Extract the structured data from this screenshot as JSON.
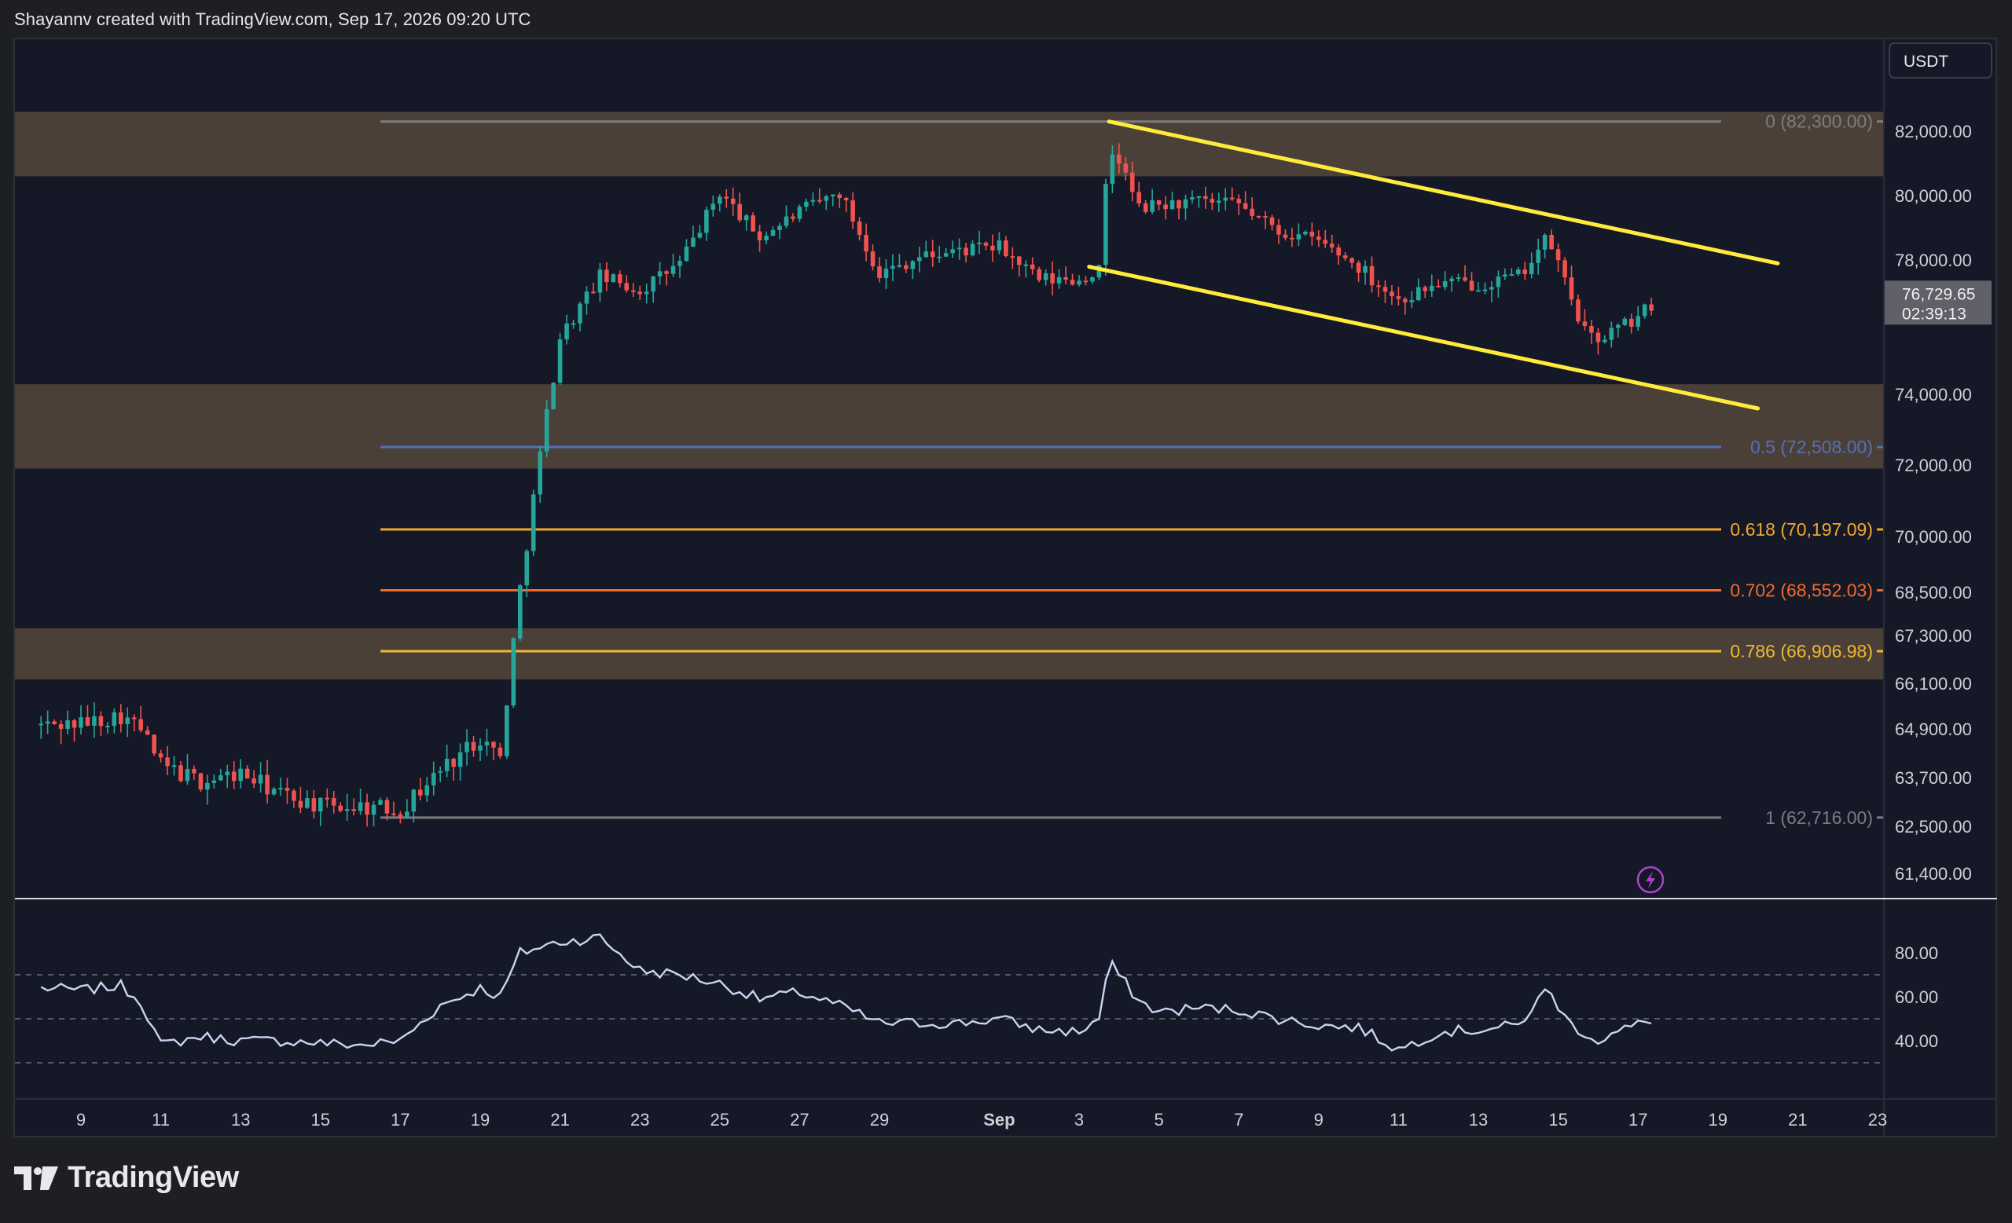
{
  "header": {
    "attribution": "Shayannv created with TradingView.com, Sep 17, 2026 09:20 UTC"
  },
  "brand": {
    "name": "TradingView",
    "logo_icon": "tradingview-logo-icon"
  },
  "colors": {
    "background": "#151826",
    "zone": "#4a4038",
    "bull": "#26a69a",
    "bear": "#ef5350",
    "channel": "#ffeb3b",
    "rsi_line": "#c8d4f0",
    "fib_0": "#7c7c80",
    "fib_05": "#5470b8",
    "fib_0618": "#f0a830",
    "fib_0702": "#f26b2a",
    "fib_0786": "#f0b830",
    "fib_1": "#7c7c80"
  },
  "chart_data": {
    "type": "candlestick",
    "currency_label": "USDT",
    "price_axis_ticks": [
      "82,000.00",
      "80,000.00",
      "78,000.00",
      "74,000.00",
      "72,000.00",
      "70,000.00",
      "68,500.00",
      "67,300.00",
      "66,100.00",
      "64,900.00",
      "63,700.00",
      "62,500.00",
      "61,400.00"
    ],
    "price_axis_values": [
      82000,
      80000,
      78000,
      74000,
      72000,
      70000,
      68500,
      67300,
      66100,
      64900,
      63700,
      62500,
      61400
    ],
    "x_axis_ticks": [
      "9",
      "11",
      "13",
      "15",
      "17",
      "19",
      "21",
      "23",
      "25",
      "27",
      "29",
      "Sep",
      "3",
      "5",
      "7",
      "9",
      "11",
      "13",
      "15",
      "17",
      "19",
      "21",
      "23"
    ],
    "x_axis_dates": [
      "2026-08-09",
      "2026-08-11",
      "2026-08-13",
      "2026-08-15",
      "2026-08-17",
      "2026-08-19",
      "2026-08-21",
      "2026-08-23",
      "2026-08-25",
      "2026-08-27",
      "2026-08-29",
      "2026-09-01",
      "2026-09-03",
      "2026-09-05",
      "2026-09-07",
      "2026-09-09",
      "2026-09-11",
      "2026-09-13",
      "2026-09-15",
      "2026-09-17",
      "2026-09-19",
      "2026-09-21",
      "2026-09-23"
    ],
    "last_price": "76,729.65",
    "countdown": "02:39:13",
    "fib_levels": [
      {
        "label": "0 (82,300.00)",
        "level": 0,
        "price": 82300.0
      },
      {
        "label": "0.5 (72,508.00)",
        "level": 0.5,
        "price": 72508.0
      },
      {
        "label": "0.618 (70,197.09)",
        "level": 0.618,
        "price": 70197.09
      },
      {
        "label": "0.702 (68,552.03)",
        "level": 0.702,
        "price": 68552.03
      },
      {
        "label": "0.786 (66,906.98)",
        "level": 0.786,
        "price": 66906.98
      },
      {
        "label": "1 (62,716.00)",
        "level": 1,
        "price": 62716.0
      }
    ],
    "zones": [
      {
        "from": 80600,
        "to": 82600
      },
      {
        "from": 71900,
        "to": 74300
      },
      {
        "from": 66200,
        "to": 67500
      }
    ],
    "channel": {
      "upper": [
        {
          "date": "2026-09-03T18:00",
          "price": 82300
        },
        {
          "date": "2026-09-20T12:00",
          "price": 77900
        }
      ],
      "lower": [
        {
          "date": "2026-09-03T06:00",
          "price": 77800
        },
        {
          "date": "2026-09-20T00:00",
          "price": 73600
        }
      ]
    },
    "price_points": [
      [
        "2026-08-08T00:00",
        65000
      ],
      [
        "2026-08-09T00:00",
        65050
      ],
      [
        "2026-08-10T00:00",
        65250
      ],
      [
        "2026-08-10T12:00",
        64900
      ],
      [
        "2026-08-11T00:00",
        64000
      ],
      [
        "2026-08-12T00:00",
        63600
      ],
      [
        "2026-08-13T00:00",
        63800
      ],
      [
        "2026-08-14T00:00",
        63300
      ],
      [
        "2026-08-15T00:00",
        63000
      ],
      [
        "2026-08-16T00:00",
        63000
      ],
      [
        "2026-08-17T00:00",
        62900
      ],
      [
        "2026-08-18T00:00",
        63900
      ],
      [
        "2026-08-19T00:00",
        64700
      ],
      [
        "2026-08-19T12:00",
        64200
      ],
      [
        "2026-08-20T00:00",
        68600
      ],
      [
        "2026-08-20T12:00",
        72300
      ],
      [
        "2026-08-21T00:00",
        75700
      ],
      [
        "2026-08-22T00:00",
        77500
      ],
      [
        "2026-08-23T00:00",
        77100
      ],
      [
        "2026-08-24T00:00",
        77900
      ],
      [
        "2026-08-25T00:00",
        80100
      ],
      [
        "2026-08-26T00:00",
        78700
      ],
      [
        "2026-08-27T00:00",
        79500
      ],
      [
        "2026-08-28T00:00",
        80100
      ],
      [
        "2026-08-29T00:00",
        77600
      ],
      [
        "2026-08-30T00:00",
        78100
      ],
      [
        "2026-08-31T00:00",
        78300
      ],
      [
        "2026-09-01T00:00",
        78400
      ],
      [
        "2026-09-02T00:00",
        77400
      ],
      [
        "2026-09-03T00:00",
        77400
      ],
      [
        "2026-09-03T12:00",
        77700
      ],
      [
        "2026-09-03T18:00",
        81400
      ],
      [
        "2026-09-04T00:00",
        81100
      ],
      [
        "2026-09-04T12:00",
        79600
      ],
      [
        "2026-09-05T00:00",
        79700
      ],
      [
        "2026-09-06T00:00",
        79800
      ],
      [
        "2026-09-07T00:00",
        79700
      ],
      [
        "2026-09-08T00:00",
        78900
      ],
      [
        "2026-09-09T00:00",
        78600
      ],
      [
        "2026-09-10T00:00",
        77800
      ],
      [
        "2026-09-11T00:00",
        76800
      ],
      [
        "2026-09-12T00:00",
        77300
      ],
      [
        "2026-09-13T00:00",
        77300
      ],
      [
        "2026-09-14T00:00",
        77500
      ],
      [
        "2026-09-14T18:00",
        78700
      ],
      [
        "2026-09-15T06:00",
        77100
      ],
      [
        "2026-09-15T18:00",
        75600
      ],
      [
        "2026-09-16T06:00",
        75800
      ],
      [
        "2026-09-17T00:00",
        76300
      ],
      [
        "2026-09-17T09:00",
        76730
      ]
    ],
    "rsi": {
      "ticks": [
        "80.00",
        "60.00",
        "40.00"
      ],
      "tick_values": [
        80,
        60,
        40
      ],
      "band_values": [
        70,
        50,
        30
      ],
      "points": [
        [
          "2026-08-08T00:00",
          64
        ],
        [
          "2026-08-09T00:00",
          63
        ],
        [
          "2026-08-10T00:00",
          65
        ],
        [
          "2026-08-10T12:00",
          58
        ],
        [
          "2026-08-11T00:00",
          38
        ],
        [
          "2026-08-12T00:00",
          42
        ],
        [
          "2026-08-13T00:00",
          40
        ],
        [
          "2026-08-14T00:00",
          40
        ],
        [
          "2026-08-15T00:00",
          39
        ],
        [
          "2026-08-16T00:00",
          38
        ],
        [
          "2026-08-17T00:00",
          40
        ],
        [
          "2026-08-18T00:00",
          56
        ],
        [
          "2026-08-19T00:00",
          64
        ],
        [
          "2026-08-19T12:00",
          60
        ],
        [
          "2026-08-20T00:00",
          80
        ],
        [
          "2026-08-21T00:00",
          85
        ],
        [
          "2026-08-22T00:00",
          87
        ],
        [
          "2026-08-23T00:00",
          72
        ],
        [
          "2026-08-24T00:00",
          70
        ],
        [
          "2026-08-25T00:00",
          66
        ],
        [
          "2026-08-26T00:00",
          59
        ],
        [
          "2026-08-27T00:00",
          62
        ],
        [
          "2026-08-28T00:00",
          56
        ],
        [
          "2026-08-29T00:00",
          48
        ],
        [
          "2026-08-30T00:00",
          48
        ],
        [
          "2026-08-31T00:00",
          48
        ],
        [
          "2026-09-01T00:00",
          50
        ],
        [
          "2026-09-02T00:00",
          45
        ],
        [
          "2026-09-03T00:00",
          44
        ],
        [
          "2026-09-03T12:00",
          50
        ],
        [
          "2026-09-03T18:00",
          76
        ],
        [
          "2026-09-04T12:00",
          58
        ],
        [
          "2026-09-05T00:00",
          53
        ],
        [
          "2026-09-06T00:00",
          55
        ],
        [
          "2026-09-07T00:00",
          54
        ],
        [
          "2026-09-08T00:00",
          50
        ],
        [
          "2026-09-09T00:00",
          47
        ],
        [
          "2026-09-10T00:00",
          46
        ],
        [
          "2026-09-11T00:00",
          36
        ],
        [
          "2026-09-12T00:00",
          44
        ],
        [
          "2026-09-13T00:00",
          45
        ],
        [
          "2026-09-14T00:00",
          47
        ],
        [
          "2026-09-14T18:00",
          64
        ],
        [
          "2026-09-15T06:00",
          48
        ],
        [
          "2026-09-16T00:00",
          40
        ],
        [
          "2026-09-16T12:00",
          44
        ],
        [
          "2026-09-17T09:00",
          50
        ]
      ]
    }
  }
}
